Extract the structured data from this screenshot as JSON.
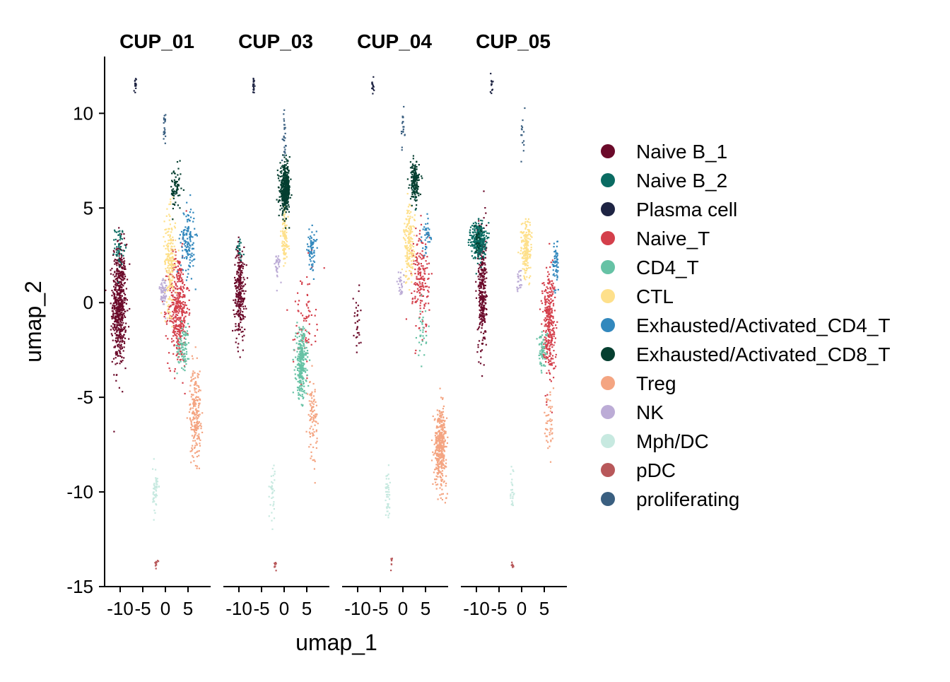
{
  "chart_data": {
    "type": "scatter",
    "facet_by": "sample",
    "panels": [
      "CUP_01",
      "CUP_03",
      "CUP_04",
      "CUP_05"
    ],
    "xlabel": "umap_1",
    "ylabel": "umap_2",
    "xlim": [
      -12.5,
      12.5
    ],
    "ylim": [
      -15,
      13
    ],
    "x_ticks": [
      -10,
      -5,
      0,
      5
    ],
    "x_tick_labels": [
      "-10",
      "-5",
      "0",
      "5"
    ],
    "y_ticks": [
      10,
      5,
      0,
      -5,
      -10,
      -15
    ],
    "y_tick_labels": [
      "10",
      "5",
      "0",
      "-5",
      "-10",
      "-15"
    ],
    "grid": false,
    "legend_position": "right",
    "series": [
      {
        "name": "Naive B_1",
        "color": "#6b0a2a"
      },
      {
        "name": "Naive B_2",
        "color": "#0a6b62"
      },
      {
        "name": "Plasma cell",
        "color": "#1e2443"
      },
      {
        "name": "Naive_T",
        "color": "#d43f4b"
      },
      {
        "name": "CD4_T",
        "color": "#66c2a5"
      },
      {
        "name": "CTL",
        "color": "#fee08b"
      },
      {
        "name": "Exhausted/Activated_CD4_T",
        "color": "#3288bd"
      },
      {
        "name": "Exhausted/Activated_CD8_T",
        "color": "#053f30"
      },
      {
        "name": "Treg",
        "color": "#f4a582"
      },
      {
        "name": "NK",
        "color": "#bcacd6"
      },
      {
        "name": "Mph/DC",
        "color": "#c7e9e0"
      },
      {
        "name": "pDC",
        "color": "#b8585a"
      },
      {
        "name": "proliferating",
        "color": "#3a5f80"
      }
    ],
    "clusters": {
      "CUP_01": [
        {
          "type": "Naive B_1",
          "cx": -10.2,
          "cy": -0.1,
          "sx": 0.75,
          "sy": 1.6,
          "n": 620
        },
        {
          "type": "Naive B_2",
          "cx": -10.2,
          "cy": 3.0,
          "sx": 0.5,
          "sy": 0.5,
          "n": 50
        },
        {
          "type": "Plasma cell",
          "cx": -6.7,
          "cy": 11.4,
          "sx": 0.12,
          "sy": 0.25,
          "n": 18
        },
        {
          "type": "Naive_T",
          "cx": 2.8,
          "cy": -0.3,
          "sx": 1.1,
          "sy": 1.5,
          "n": 420
        },
        {
          "type": "CD4_T",
          "cx": 4.0,
          "cy": -2.3,
          "sx": 0.7,
          "sy": 0.6,
          "n": 80
        },
        {
          "type": "CTL",
          "cx": 1.0,
          "cy": 2.2,
          "sx": 0.6,
          "sy": 1.3,
          "n": 200
        },
        {
          "type": "Exhausted/Activated_CD4_T",
          "cx": 5.0,
          "cy": 3.3,
          "sx": 0.8,
          "sy": 0.9,
          "n": 140
        },
        {
          "type": "Exhausted/Activated_CD8_T",
          "cx": 2.3,
          "cy": 6.0,
          "sx": 0.6,
          "sy": 0.6,
          "n": 70
        },
        {
          "type": "Treg",
          "cx": 6.6,
          "cy": -5.8,
          "sx": 0.6,
          "sy": 1.2,
          "n": 220
        },
        {
          "type": "NK",
          "cx": -0.5,
          "cy": 0.5,
          "sx": 0.4,
          "sy": 0.5,
          "n": 60
        },
        {
          "type": "Mph/DC",
          "cx": -2.2,
          "cy": -9.9,
          "sx": 0.3,
          "sy": 0.6,
          "n": 50
        },
        {
          "type": "pDC",
          "cx": -2.0,
          "cy": -13.8,
          "sx": 0.15,
          "sy": 0.12,
          "n": 10
        },
        {
          "type": "proliferating",
          "cx": -0.2,
          "cy": 9.4,
          "sx": 0.12,
          "sy": 0.5,
          "n": 20
        }
      ],
      "CUP_03": [
        {
          "type": "Naive B_1",
          "cx": -9.8,
          "cy": 0.6,
          "sx": 0.6,
          "sy": 1.2,
          "n": 280
        },
        {
          "type": "Naive B_2",
          "cx": -10.0,
          "cy": 2.8,
          "sx": 0.4,
          "sy": 0.3,
          "n": 25
        },
        {
          "type": "Plasma cell",
          "cx": -6.7,
          "cy": 11.5,
          "sx": 0.12,
          "sy": 0.25,
          "n": 18
        },
        {
          "type": "Naive_T",
          "cx": 4.5,
          "cy": -1.0,
          "sx": 1.2,
          "sy": 1.3,
          "n": 80
        },
        {
          "type": "CD4_T",
          "cx": 3.8,
          "cy": -3.2,
          "sx": 0.6,
          "sy": 0.9,
          "n": 280
        },
        {
          "type": "CTL",
          "cx": 0.1,
          "cy": 3.5,
          "sx": 0.4,
          "sy": 0.9,
          "n": 110
        },
        {
          "type": "Exhausted/Activated_CD4_T",
          "cx": 6.1,
          "cy": 2.8,
          "sx": 0.5,
          "sy": 0.5,
          "n": 70
        },
        {
          "type": "Exhausted/Activated_CD8_T",
          "cx": 0.2,
          "cy": 6.0,
          "sx": 0.55,
          "sy": 0.6,
          "n": 420
        },
        {
          "type": "Treg",
          "cx": 6.3,
          "cy": -6.0,
          "sx": 0.5,
          "sy": 1.0,
          "n": 90
        },
        {
          "type": "NK",
          "cx": -1.5,
          "cy": 1.9,
          "sx": 0.3,
          "sy": 0.4,
          "n": 30
        },
        {
          "type": "Mph/DC",
          "cx": -2.6,
          "cy": -10.0,
          "sx": 0.3,
          "sy": 0.8,
          "n": 35
        },
        {
          "type": "pDC",
          "cx": -2.0,
          "cy": -13.9,
          "sx": 0.15,
          "sy": 0.12,
          "n": 10
        },
        {
          "type": "proliferating",
          "cx": 0.0,
          "cy": 9.0,
          "sx": 0.2,
          "sy": 0.6,
          "n": 25
        }
      ],
      "CUP_04": [
        {
          "type": "Naive B_1",
          "cx": -10.2,
          "cy": -1.0,
          "sx": 0.5,
          "sy": 1.0,
          "n": 30
        },
        {
          "type": "Naive B_2",
          "cx": 2.5,
          "cy": 6.2,
          "sx": 0.4,
          "sy": 0.4,
          "n": 10
        },
        {
          "type": "Plasma cell",
          "cx": -6.7,
          "cy": 11.5,
          "sx": 0.12,
          "sy": 0.25,
          "n": 15
        },
        {
          "type": "Naive_T",
          "cx": 4.0,
          "cy": 1.2,
          "sx": 0.9,
          "sy": 1.4,
          "n": 180
        },
        {
          "type": "CD4_T",
          "cx": 4.2,
          "cy": -1.5,
          "sx": 0.5,
          "sy": 0.7,
          "n": 30
        },
        {
          "type": "CTL",
          "cx": 1.4,
          "cy": 3.0,
          "sx": 0.6,
          "sy": 1.0,
          "n": 170
        },
        {
          "type": "Exhausted/Activated_CD4_T",
          "cx": 5.2,
          "cy": 3.5,
          "sx": 0.5,
          "sy": 0.5,
          "n": 40
        },
        {
          "type": "Exhausted/Activated_CD8_T",
          "cx": 2.6,
          "cy": 6.4,
          "sx": 0.5,
          "sy": 0.5,
          "n": 160
        },
        {
          "type": "Treg",
          "cx": 8.3,
          "cy": -7.6,
          "sx": 0.65,
          "sy": 1.0,
          "n": 420
        },
        {
          "type": "NK",
          "cx": -0.5,
          "cy": 1.0,
          "sx": 0.3,
          "sy": 0.4,
          "n": 25
        },
        {
          "type": "Mph/DC",
          "cx": -3.4,
          "cy": -10.2,
          "sx": 0.25,
          "sy": 0.7,
          "n": 45
        },
        {
          "type": "pDC",
          "cx": -2.6,
          "cy": -13.6,
          "sx": 0.12,
          "sy": 0.2,
          "n": 8
        },
        {
          "type": "proliferating",
          "cx": 0.0,
          "cy": 9.3,
          "sx": 0.2,
          "sy": 0.6,
          "n": 20
        }
      ],
      "CUP_05": [
        {
          "type": "Naive B_1",
          "cx": -8.7,
          "cy": 0.6,
          "sx": 0.45,
          "sy": 1.6,
          "n": 320
        },
        {
          "type": "Naive B_2",
          "cx": -9.5,
          "cy": 3.3,
          "sx": 0.8,
          "sy": 0.5,
          "n": 320
        },
        {
          "type": "Plasma cell",
          "cx": -6.7,
          "cy": 11.5,
          "sx": 0.12,
          "sy": 0.25,
          "n": 12
        },
        {
          "type": "Naive_T",
          "cx": 6.0,
          "cy": -1.0,
          "sx": 0.7,
          "sy": 1.4,
          "n": 320
        },
        {
          "type": "CD4_T",
          "cx": 4.6,
          "cy": -2.5,
          "sx": 0.5,
          "sy": 0.5,
          "n": 60
        },
        {
          "type": "CTL",
          "cx": 1.0,
          "cy": 2.8,
          "sx": 0.6,
          "sy": 0.8,
          "n": 180
        },
        {
          "type": "Exhausted/Activated_CD4_T",
          "cx": 7.5,
          "cy": 2.0,
          "sx": 0.3,
          "sy": 0.7,
          "n": 60
        },
        {
          "type": "Exhausted/Activated_CD8_T",
          "cx": -9.8,
          "cy": 3.3,
          "sx": 0.4,
          "sy": 0.3,
          "n": 25
        },
        {
          "type": "Treg",
          "cx": 6.1,
          "cy": -6.2,
          "sx": 0.5,
          "sy": 1.0,
          "n": 45
        },
        {
          "type": "NK",
          "cx": -0.5,
          "cy": 1.1,
          "sx": 0.3,
          "sy": 0.4,
          "n": 25
        },
        {
          "type": "Mph/DC",
          "cx": -2.0,
          "cy": -10.0,
          "sx": 0.3,
          "sy": 0.7,
          "n": 25
        },
        {
          "type": "pDC",
          "cx": -2.0,
          "cy": -13.9,
          "sx": 0.12,
          "sy": 0.12,
          "n": 8
        },
        {
          "type": "proliferating",
          "cx": 0.2,
          "cy": 9.0,
          "sx": 0.2,
          "sy": 0.6,
          "n": 15
        }
      ]
    }
  }
}
